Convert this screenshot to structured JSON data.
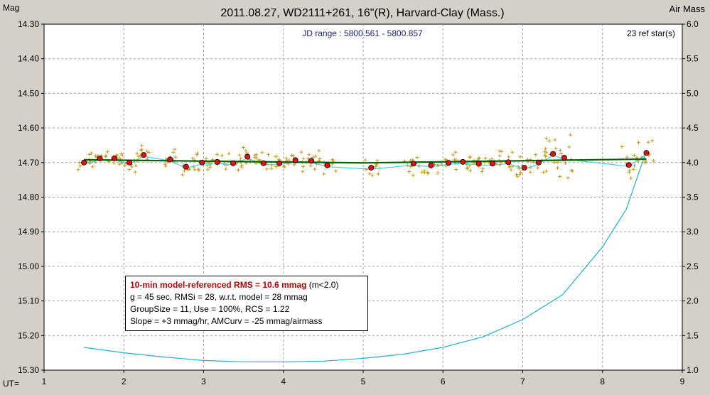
{
  "chart_data": {
    "type": "scatter",
    "title": "2011.08.27, WD2111+261, 16\"(R), Harvard-Clay (Mass.)",
    "subtitle": "JD range : 5800.561 - 5800.857",
    "ref_stars": "23 ref star(s)",
    "ylabel_left": "Mag",
    "ylabel_right": "Air Mass",
    "xlabel": "UT=",
    "xlim": [
      1,
      9
    ],
    "ylim": [
      15.3,
      14.3
    ],
    "y2lim": [
      1.0,
      6.0
    ],
    "x_ticks": [
      "1",
      "2",
      "3",
      "4",
      "5",
      "6",
      "7",
      "8",
      "9"
    ],
    "y_ticks": [
      "14.30",
      "14.40",
      "14.50",
      "14.60",
      "14.70",
      "14.80",
      "14.90",
      "15.00",
      "15.10",
      "15.20",
      "15.30"
    ],
    "y2_ticks": [
      "6.0",
      "5.5",
      "5.0",
      "4.5",
      "4.0",
      "3.5",
      "3.0",
      "2.5",
      "2.0",
      "1.5",
      "1.0"
    ],
    "grid": true,
    "colors": {
      "individual": "#c89a20",
      "group_means": "#e01010",
      "model": "#006400",
      "smooth": "#40d0e0",
      "airmass": "#20b0d8",
      "background": "#d4d0c8",
      "plot_bg": "#ffffff"
    },
    "series": [
      {
        "name": "group means",
        "x": [
          1.5,
          1.7,
          1.88,
          2.07,
          2.25,
          2.58,
          2.78,
          2.98,
          3.17,
          3.37,
          3.55,
          3.75,
          3.95,
          4.15,
          4.35,
          4.55,
          5.1,
          5.63,
          5.85,
          6.07,
          6.25,
          6.45,
          6.62,
          6.82,
          7.02,
          7.2,
          7.38,
          7.52,
          8.33,
          8.55
        ],
        "y": [
          14.7,
          14.688,
          14.688,
          14.7,
          14.678,
          14.691,
          14.712,
          14.7,
          14.698,
          14.702,
          14.683,
          14.702,
          14.702,
          14.693,
          14.695,
          14.708,
          14.715,
          14.703,
          14.708,
          14.701,
          14.698,
          14.703,
          14.703,
          14.699,
          14.715,
          14.7,
          14.675,
          14.686,
          14.707,
          14.672
        ]
      },
      {
        "name": "model",
        "x": [
          1.5,
          5.0,
          8.55
        ],
        "y": [
          14.692,
          14.701,
          14.69
        ]
      },
      {
        "name": "air mass",
        "x": [
          1.5,
          2.0,
          2.5,
          3.0,
          3.5,
          4.0,
          4.5,
          5.0,
          5.5,
          6.0,
          6.5,
          7.0,
          7.5,
          8.0,
          8.3,
          8.55
        ],
        "y": [
          1.33,
          1.25,
          1.19,
          1.14,
          1.12,
          1.12,
          1.13,
          1.17,
          1.23,
          1.33,
          1.48,
          1.73,
          2.09,
          2.78,
          3.33,
          4.17
        ]
      }
    ]
  },
  "stats": {
    "headline": "10-min model-referenced RMS = 10.6 mmag",
    "headline_note": "(m<2.0)",
    "line2": "g = 45 sec, RMSi = 28, w.r.t. model = 28 mmag",
    "line3": "GroupSize = 11, Use = 100%, RCS = 1.22",
    "line4": "Slope = +3 mmag/hr, AMCurv = -25 mmag/airmass"
  }
}
